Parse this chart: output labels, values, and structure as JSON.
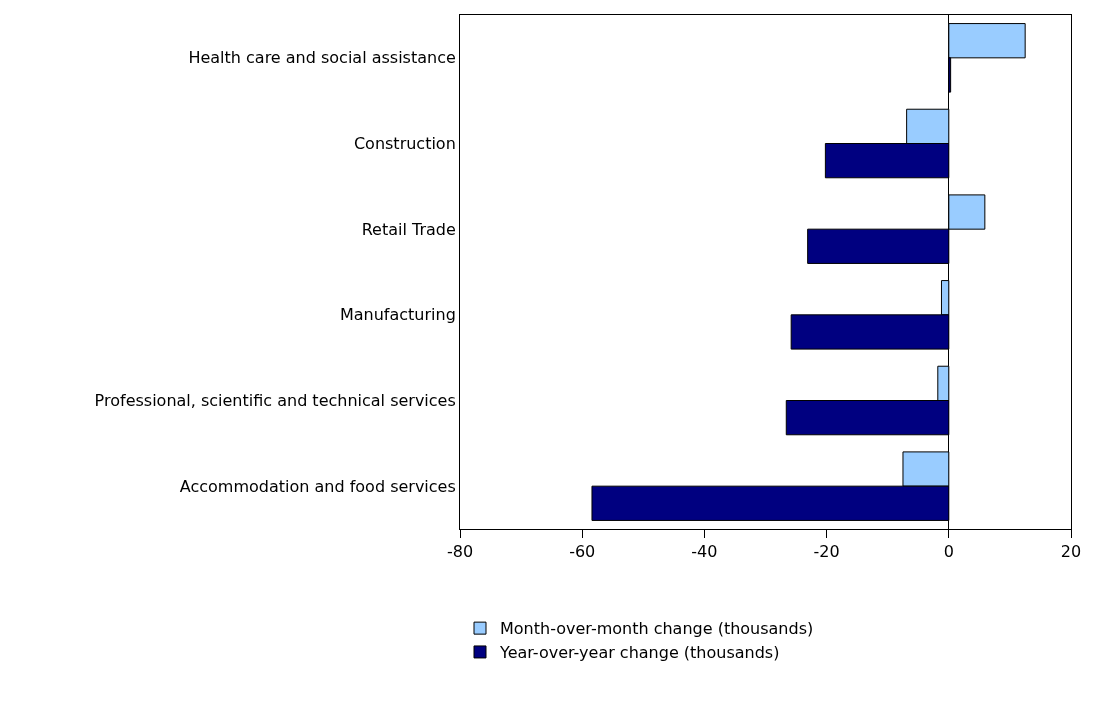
{
  "chart_data": {
    "type": "bar",
    "orientation": "horizontal",
    "categories": [
      "Health care and social assistance",
      "Construction",
      "Retail Trade",
      "Manufacturing",
      "Professional, scientific and technical services",
      "Accommodation and food services"
    ],
    "series": [
      {
        "name": "Month-over-month change (thousands)",
        "color": "#99ccff",
        "values": [
          12.5,
          -6.9,
          5.9,
          -1.2,
          -1.8,
          -7.5
        ]
      },
      {
        "name": "Year-over-year change (thousands)",
        "color": "#000080",
        "values": [
          0.3,
          -20.2,
          -23.1,
          -25.8,
          -26.6,
          -58.4
        ]
      }
    ],
    "xlim": [
      -80,
      20
    ],
    "xticks": [
      -80,
      -60,
      -40,
      -20,
      0,
      20
    ],
    "legend": "bottom"
  }
}
